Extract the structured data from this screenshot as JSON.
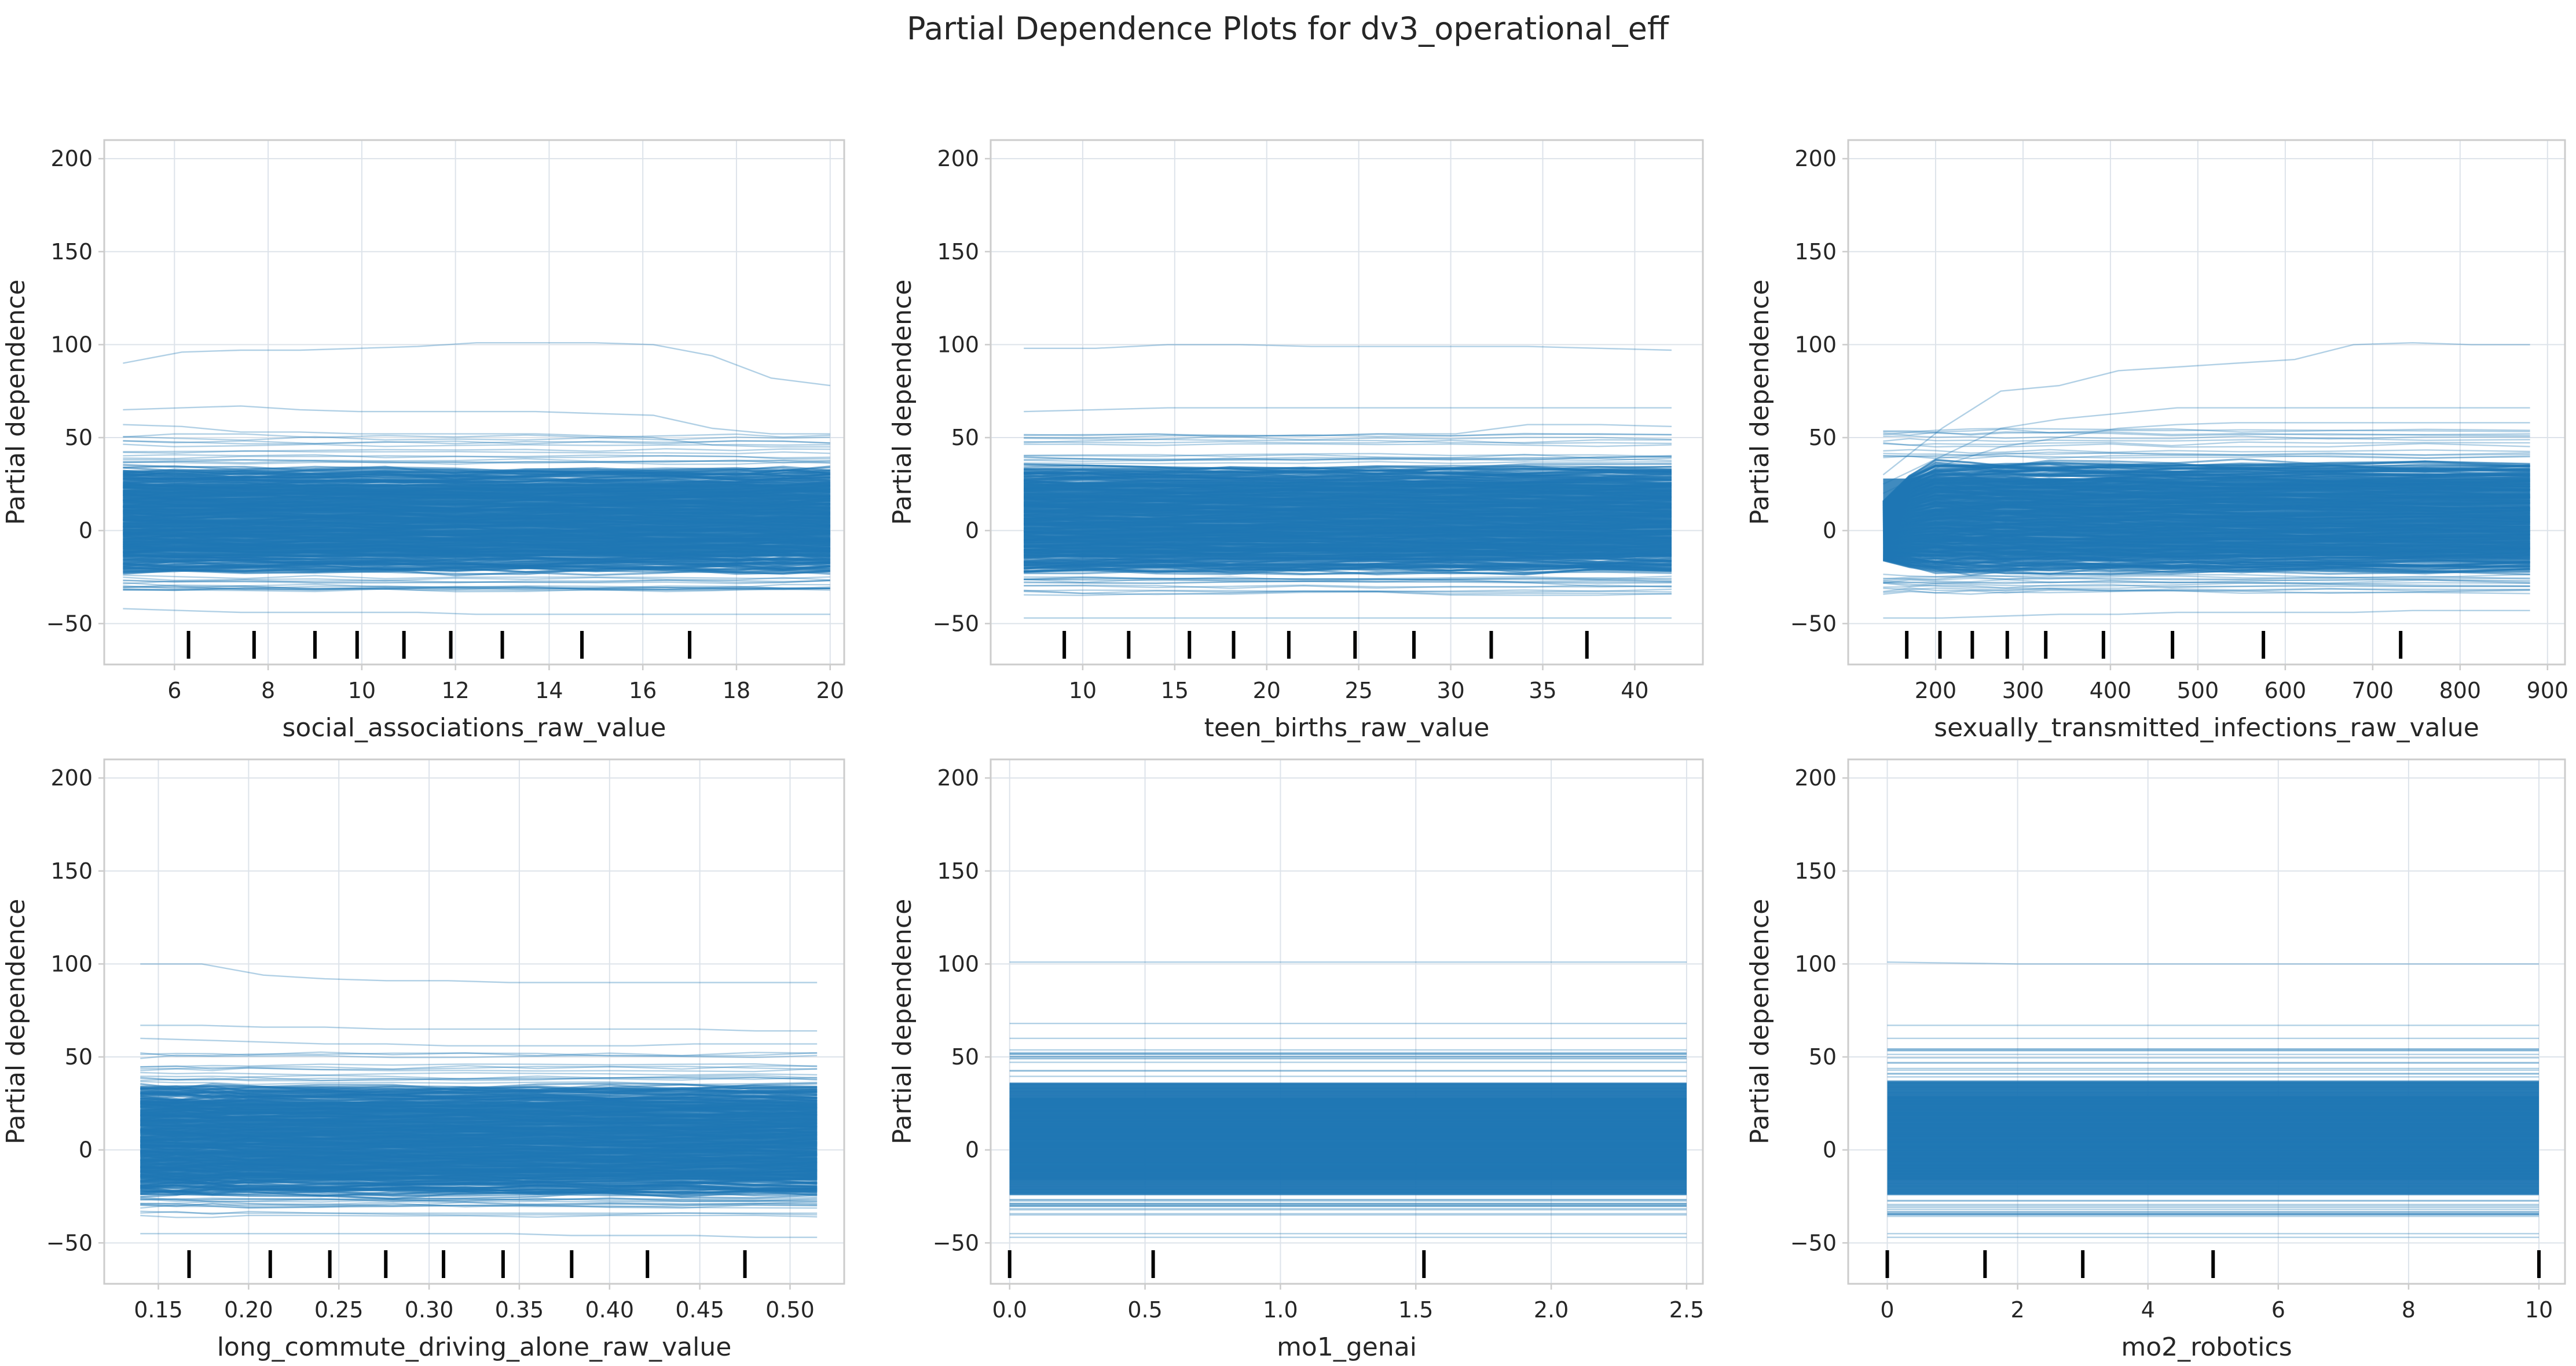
{
  "figure": {
    "title": "Partial Dependence Plots for dv3_operational_eff",
    "colors": {
      "line": "#1f77b4",
      "frame": "#cccccc",
      "grid": "#dde3ea",
      "text": "#262626",
      "rug": "#000000"
    }
  },
  "chart_data": [
    {
      "type": "line",
      "feature": "social_associations_raw_value",
      "xlabel": "social_associations_raw_value",
      "ylabel": "Partial dependence",
      "xlim": [
        4.5,
        20.3
      ],
      "ylim": [
        -72,
        210
      ],
      "xticks": [
        6,
        8,
        10,
        12,
        14,
        16,
        18,
        20
      ],
      "yticks": [
        -50,
        0,
        50,
        100,
        150,
        200
      ],
      "grid": true,
      "deciles": [
        6.3,
        7.7,
        9.0,
        9.9,
        10.9,
        11.9,
        13.0,
        14.7,
        17.0
      ],
      "grid_x": [
        4.9,
        6.0,
        7.5,
        9.0,
        10.5,
        12.0,
        13.5,
        15.0,
        16.5,
        18.0,
        19.0,
        20.0
      ],
      "highlight_curves": [
        {
          "y": [
            90,
            96,
            97,
            97,
            98,
            99,
            101,
            101,
            101,
            100,
            94,
            82,
            78
          ]
        },
        {
          "y": [
            65,
            66,
            67,
            65,
            64,
            64,
            64,
            64,
            63,
            62,
            55,
            52,
            52
          ]
        },
        {
          "y": [
            57,
            56,
            53,
            53,
            52,
            52,
            52,
            52,
            51,
            50,
            46,
            45,
            45
          ]
        },
        {
          "y": [
            -42,
            -43,
            -44,
            -44,
            -44,
            -44,
            -45,
            -45,
            -45,
            -45,
            -45,
            -45,
            -45
          ]
        },
        {
          "y": [
            -28,
            -30,
            -30,
            -31,
            -31,
            -32,
            -32,
            -32,
            -32,
            -32,
            -32,
            -31,
            -31
          ]
        }
      ],
      "band": {
        "top": 33,
        "bottom": -22,
        "n_lines": 260,
        "seed": 11
      }
    },
    {
      "type": "line",
      "feature": "teen_births_raw_value",
      "xlabel": "teen_births_raw_value",
      "ylabel": "Partial dependence",
      "xlim": [
        5.0,
        43.7
      ],
      "ylim": [
        -72,
        210
      ],
      "xticks": [
        10,
        15,
        20,
        25,
        30,
        35,
        40
      ],
      "yticks": [
        -50,
        0,
        50,
        100,
        150,
        200
      ],
      "grid": true,
      "deciles": [
        9.0,
        12.5,
        15.8,
        18.2,
        21.2,
        24.8,
        28.0,
        32.2,
        37.4
      ],
      "grid_x": [
        6.8,
        10,
        14,
        18,
        22,
        26,
        30,
        34,
        38,
        42.0
      ],
      "highlight_curves": [
        {
          "y": [
            98,
            98,
            100,
            100,
            99,
            99,
            99,
            99,
            98,
            97
          ]
        },
        {
          "y": [
            64,
            65,
            66,
            66,
            66,
            66,
            66,
            66,
            66,
            66
          ]
        },
        {
          "y": [
            50,
            50,
            51,
            51,
            51,
            52,
            52,
            57,
            57,
            56
          ]
        },
        {
          "y": [
            -47,
            -47,
            -47,
            -47,
            -47,
            -47,
            -47,
            -47,
            -47,
            -47
          ]
        },
        {
          "y": [
            -25,
            -25,
            -26,
            -26,
            -26,
            -26,
            -27,
            -28,
            -30,
            -30
          ]
        }
      ],
      "band": {
        "top": 34,
        "bottom": -22,
        "n_lines": 260,
        "seed": 23
      }
    },
    {
      "type": "line",
      "feature": "sexually_transmitted_infections_raw_value",
      "xlabel": "sexually_transmitted_infections_raw_value",
      "ylabel": "Partial dependence",
      "xlim": [
        100,
        920
      ],
      "ylim": [
        -72,
        210
      ],
      "xticks": [
        200,
        300,
        400,
        500,
        600,
        700,
        800,
        900
      ],
      "yticks": [
        -50,
        0,
        50,
        100,
        150,
        200
      ],
      "grid": true,
      "deciles": [
        167,
        205,
        242,
        282,
        326,
        392,
        471,
        575,
        732
      ],
      "grid_x": [
        140,
        170,
        200,
        240,
        280,
        330,
        400,
        470,
        550,
        650,
        760,
        880
      ],
      "highlight_curves": [
        {
          "y": [
            30,
            55,
            75,
            78,
            86,
            88,
            90,
            92,
            100,
            101,
            100,
            100
          ]
        },
        {
          "y": [
            25,
            40,
            55,
            60,
            63,
            66,
            66,
            66,
            66,
            66,
            66,
            66
          ]
        },
        {
          "y": [
            20,
            35,
            45,
            50,
            55,
            57,
            58,
            58,
            58,
            58,
            58,
            58
          ]
        },
        {
          "y": [
            -47,
            -47,
            -46,
            -45,
            -45,
            -44,
            -44,
            -44,
            -44,
            -43,
            -43,
            -43
          ]
        },
        {
          "y": [
            -28,
            -30,
            -31,
            -31,
            -31,
            -30,
            -30,
            -30,
            -30,
            -30,
            -30,
            -30
          ]
        }
      ],
      "band": {
        "top": 36,
        "bottom": -22,
        "n_lines": 260,
        "seed": 37,
        "rise": true
      }
    },
    {
      "type": "line",
      "feature": "long_commute_driving_alone_raw_value",
      "xlabel": "long_commute_driving_alone_raw_value",
      "ylabel": "Partial dependence",
      "xlim": [
        0.12,
        0.53
      ],
      "ylim": [
        -72,
        210
      ],
      "xticks": [
        0.15,
        0.2,
        0.25,
        0.3,
        0.35,
        0.4,
        0.45,
        0.5
      ],
      "yticks": [
        -50,
        0,
        50,
        100,
        150,
        200
      ],
      "grid": true,
      "deciles": [
        0.167,
        0.212,
        0.245,
        0.276,
        0.308,
        0.341,
        0.379,
        0.421,
        0.475
      ],
      "grid_x": [
        0.14,
        0.16,
        0.18,
        0.2,
        0.24,
        0.28,
        0.32,
        0.36,
        0.4,
        0.44,
        0.48,
        0.515
      ],
      "highlight_curves": [
        {
          "y": [
            100,
            100,
            94,
            92,
            91,
            91,
            90,
            90,
            90,
            90,
            90,
            90
          ]
        },
        {
          "y": [
            67,
            67,
            66,
            66,
            65,
            65,
            65,
            65,
            65,
            65,
            64,
            64
          ]
        },
        {
          "y": [
            60,
            59,
            58,
            57,
            57,
            56,
            56,
            56,
            56,
            57,
            57,
            57
          ]
        },
        {
          "y": [
            -45,
            -45,
            -45,
            -45,
            -45,
            -45,
            -45,
            -46,
            -46,
            -46,
            -47,
            -47
          ]
        },
        {
          "y": [
            -33,
            -34,
            -34,
            -34,
            -34,
            -34,
            -34,
            -34,
            -34,
            -34,
            -34,
            -34
          ]
        }
      ],
      "band": {
        "top": 34,
        "bottom": -24,
        "n_lines": 260,
        "seed": 41
      }
    },
    {
      "type": "line",
      "feature": "mo1_genai",
      "xlabel": "mo1_genai",
      "ylabel": "Partial dependence",
      "xlim": [
        -0.07,
        2.56
      ],
      "ylim": [
        -72,
        210
      ],
      "xticks": [
        0.0,
        0.5,
        1.0,
        1.5,
        2.0,
        2.5
      ],
      "yticks": [
        -50,
        0,
        50,
        100,
        150,
        200
      ],
      "grid": true,
      "deciles": [
        0.0,
        0.53,
        1.53
      ],
      "grid_x": [
        0,
        2.5
      ],
      "highlight_curves": [
        {
          "y": [
            101,
            101
          ]
        },
        {
          "y": [
            68,
            68
          ]
        },
        {
          "y": [
            60,
            60
          ]
        },
        {
          "y": [
            -45,
            -45
          ]
        },
        {
          "y": [
            -47,
            -47
          ]
        },
        {
          "y": [
            -30,
            -30
          ]
        }
      ],
      "band": {
        "top": 36,
        "bottom": -24,
        "n_lines": 260,
        "seed": 53,
        "flat": true
      }
    },
    {
      "type": "line",
      "feature": "mo2_robotics",
      "xlabel": "mo2_robotics",
      "ylabel": "Partial dependence",
      "xlim": [
        -0.6,
        10.4
      ],
      "ylim": [
        -72,
        210
      ],
      "xticks": [
        0,
        2,
        4,
        6,
        8,
        10
      ],
      "yticks": [
        -50,
        0,
        50,
        100,
        150,
        200
      ],
      "grid": true,
      "deciles": [
        0,
        1.5,
        3,
        5,
        10
      ],
      "grid_x": [
        0,
        2,
        4,
        6,
        8,
        10
      ],
      "highlight_curves": [
        {
          "y": [
            101,
            100,
            100,
            100,
            100,
            100
          ]
        },
        {
          "y": [
            67,
            67,
            67,
            67,
            67,
            67
          ]
        },
        {
          "y": [
            60,
            60,
            60,
            60,
            60,
            60
          ]
        },
        {
          "y": [
            -45,
            -45,
            -45,
            -45,
            -45,
            -45
          ]
        },
        {
          "y": [
            -47,
            -47,
            -47,
            -47,
            -47,
            -47
          ]
        },
        {
          "y": [
            -31,
            -31,
            -31,
            -31,
            -31,
            -31
          ]
        }
      ],
      "band": {
        "top": 37,
        "bottom": -24,
        "n_lines": 260,
        "seed": 67,
        "flat": true
      }
    }
  ]
}
